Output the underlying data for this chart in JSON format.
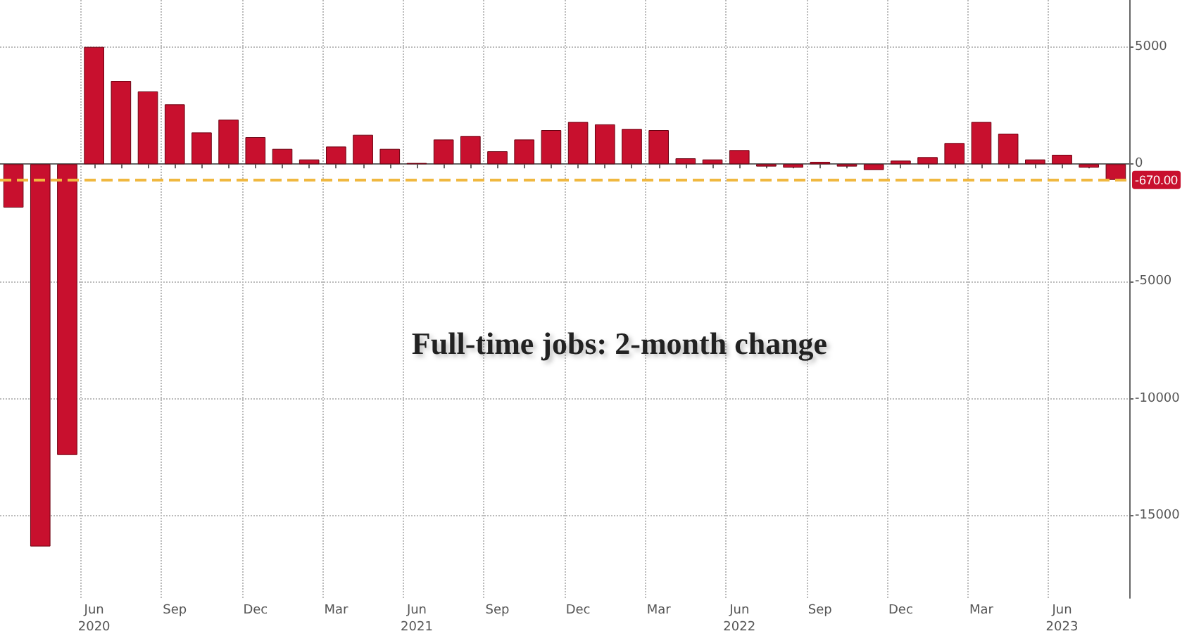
{
  "chart_data": {
    "type": "bar",
    "title": "Full-time jobs: 2-month change",
    "categories": [
      null,
      null,
      null,
      "Jun\n2020",
      null,
      null,
      "Sep",
      null,
      null,
      "Dec",
      null,
      null,
      "Mar",
      null,
      null,
      "Jun\n2021",
      null,
      null,
      "Sep",
      null,
      null,
      "Dec",
      null,
      null,
      "Mar",
      null,
      null,
      "Jun\n2022",
      null,
      null,
      "Sep",
      null,
      null,
      "Dec",
      null,
      null,
      "Mar",
      null,
      null,
      "Jun\n2023",
      null,
      null
    ],
    "values": [
      -1850,
      -16300,
      -12400,
      5000,
      3550,
      3100,
      2550,
      1350,
      1900,
      1150,
      650,
      200,
      750,
      1250,
      650,
      50,
      1050,
      1200,
      550,
      1050,
      1450,
      1800,
      1700,
      1500,
      1450,
      250,
      200,
      600,
      -100,
      -150,
      100,
      -100,
      -250,
      150,
      300,
      900,
      1800,
      1300,
      200,
      400,
      -150,
      -670
    ],
    "color": "#c8102e",
    "ylim": [
      -18500,
      7000
    ],
    "yticks": [
      -15000,
      -10000,
      -5000,
      0,
      5000
    ],
    "grid": true,
    "ref_lines": [
      {
        "axis": "y",
        "value": -670,
        "label": "-670.00",
        "color": "#f0b840",
        "line_style": "dashed"
      }
    ]
  }
}
